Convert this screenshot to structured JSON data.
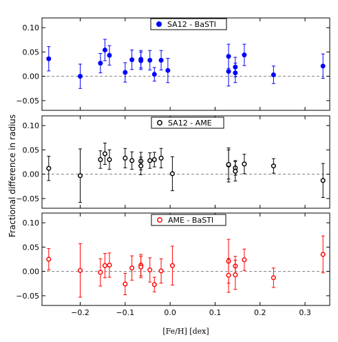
{
  "chart_data": [
    {
      "type": "scatter",
      "legend": "SA12 - BaSTI",
      "marker": "filled",
      "color": "#0000ff",
      "x": [
        -0.27,
        -0.2,
        -0.155,
        -0.145,
        -0.135,
        -0.1,
        -0.085,
        -0.065,
        -0.065,
        -0.045,
        -0.035,
        -0.02,
        -0.005,
        0.13,
        0.13,
        0.145,
        0.145,
        0.165,
        0.23,
        0.34
      ],
      "y": [
        0.036,
        0.0,
        0.027,
        0.054,
        0.043,
        0.008,
        0.034,
        0.032,
        0.035,
        0.033,
        0.004,
        0.033,
        0.012,
        0.041,
        0.01,
        0.019,
        0.007,
        0.044,
        0.003,
        0.021
      ],
      "err": [
        0.025,
        0.025,
        0.02,
        0.022,
        0.02,
        0.02,
        0.02,
        0.018,
        0.018,
        0.02,
        0.014,
        0.02,
        0.025,
        0.025,
        0.03,
        0.02,
        0.02,
        0.022,
        0.018,
        0.025
      ],
      "ylim": [
        -0.07,
        0.12
      ],
      "yticks": [
        "0.10",
        "0.05",
        "0.00",
        "-0.05"
      ]
    },
    {
      "type": "scatter",
      "legend": "SA12 - AME",
      "marker": "open",
      "color": "#000000",
      "x": [
        -0.27,
        -0.2,
        -0.155,
        -0.145,
        -0.135,
        -0.1,
        -0.085,
        -0.065,
        -0.065,
        -0.045,
        -0.035,
        -0.02,
        0.005,
        0.13,
        0.13,
        0.145,
        0.145,
        0.165,
        0.23,
        0.34
      ],
      "y": [
        0.012,
        -0.003,
        0.03,
        0.042,
        0.03,
        0.033,
        0.028,
        0.027,
        0.017,
        0.028,
        0.03,
        0.033,
        0.001,
        0.019,
        0.02,
        0.013,
        0.006,
        0.021,
        0.017,
        -0.013
      ],
      "err": [
        0.025,
        0.055,
        0.018,
        0.022,
        0.02,
        0.02,
        0.018,
        0.018,
        0.018,
        0.016,
        0.015,
        0.02,
        0.035,
        0.035,
        0.03,
        0.015,
        0.02,
        0.02,
        0.015,
        0.035
      ],
      "ylim": [
        -0.07,
        0.12
      ],
      "yticks": [
        "0.10",
        "0.05",
        "0.00",
        "-0.05"
      ]
    },
    {
      "type": "scatter",
      "legend": "AME - BaSTI",
      "marker": "open",
      "color": "#ff0000",
      "x": [
        -0.27,
        -0.2,
        -0.155,
        -0.145,
        -0.135,
        -0.1,
        -0.085,
        -0.065,
        -0.065,
        -0.045,
        -0.035,
        -0.02,
        0.005,
        0.13,
        0.13,
        0.145,
        0.145,
        0.165,
        0.23,
        0.34
      ],
      "y": [
        0.025,
        0.002,
        -0.002,
        0.012,
        0.013,
        -0.026,
        0.007,
        0.013,
        0.009,
        0.003,
        -0.027,
        0.001,
        0.012,
        0.021,
        -0.008,
        0.011,
        -0.007,
        0.024,
        -0.013,
        0.035
      ],
      "err": [
        0.022,
        0.055,
        0.028,
        0.025,
        0.025,
        0.022,
        0.025,
        0.022,
        0.022,
        0.025,
        0.015,
        0.025,
        0.04,
        0.045,
        0.035,
        0.02,
        0.03,
        0.022,
        0.02,
        0.038
      ],
      "ylim": [
        -0.07,
        0.12
      ],
      "yticks": [
        "0.10",
        "0.05",
        "0.00",
        "-0.05"
      ]
    }
  ],
  "shared": {
    "xlim": [
      -0.285,
      0.355
    ],
    "xticks": [
      -0.2,
      -0.1,
      0.0,
      0.1,
      0.2,
      0.3
    ],
    "xticklabels": [
      "−0.2",
      "−0.1",
      "0.0",
      "0.1",
      "0.2",
      "0.3"
    ],
    "xlabel": "[Fe/H]  [dex]",
    "ylabel": "Fractional difference in radius"
  }
}
